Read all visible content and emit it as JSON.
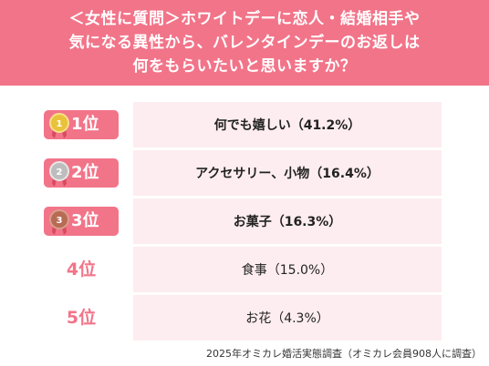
{
  "header": {
    "line1": "＜女性に質問＞ホワイトデーに恋人・結婚相手や",
    "line2": "気になる異性から、バレンタインデーのお返しは",
    "line3": "何をもらいたいと思いますか？"
  },
  "colors": {
    "accent": "#f27489",
    "row_bg": "#fdedf0",
    "gold": "#e9c23b",
    "silver": "#bdbdbd",
    "bronze": "#b86b54"
  },
  "chart_data": {
    "type": "table",
    "unit": "%",
    "rows": [
      {
        "rank": "1位",
        "item": "何でも嬉しい",
        "value": 41.2,
        "text": "何でも嬉しい（41.2%）",
        "medal": "gold-medal-icon",
        "medal_num": "1"
      },
      {
        "rank": "2位",
        "item": "アクセサリー、小物",
        "value": 16.4,
        "text": "アクセサリー、小物（16.4%）",
        "medal": "silver-medal-icon",
        "medal_num": "2"
      },
      {
        "rank": "3位",
        "item": "お菓子",
        "value": 16.3,
        "text": "お菓子（16.3%）",
        "medal": "bronze-medal-icon",
        "medal_num": "3"
      },
      {
        "rank": "4位",
        "item": "食事",
        "value": 15.0,
        "text": "食事（15.0%）"
      },
      {
        "rank": "5位",
        "item": "お花",
        "value": 4.3,
        "text": "お花（4.3%）"
      }
    ]
  },
  "footer": {
    "source": "2025年オミカレ婚活実態調査（オミカレ会員908人に調査）"
  }
}
